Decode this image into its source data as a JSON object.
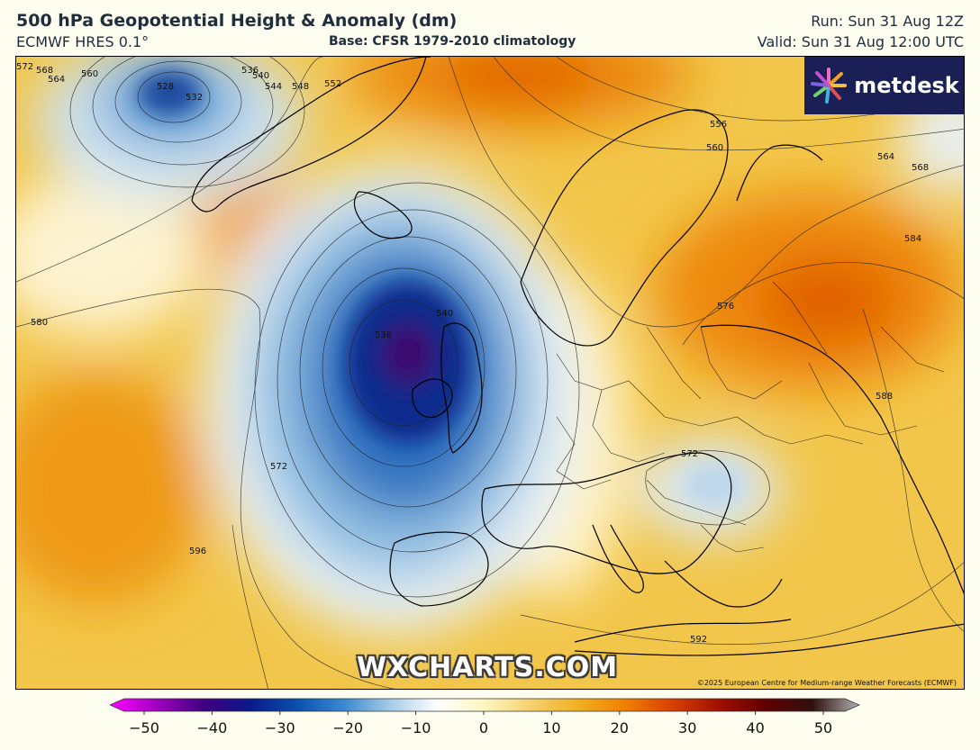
{
  "header": {
    "title": "500 hPa Geopotential Height & Anomaly (dm)",
    "model": "ECMWF HRES 0.1°",
    "base": "Base: CFSR 1979-2010 climatology",
    "run": "Run: Sun 31 Aug 12Z",
    "valid": "Valid: Sun 31 Aug 12:00 UTC"
  },
  "logo": {
    "text": "metdesk",
    "icon": "pinwheel-logo-icon"
  },
  "watermark": "WXCHARTS.COM",
  "copyright": "©2025 European Centre for Medium-range Weather Forecasts (ECMWF)",
  "contour_labels": [
    "572",
    "568",
    "564",
    "560",
    "528",
    "532",
    "536",
    "540",
    "544",
    "548",
    "552",
    "556",
    "560",
    "564",
    "568",
    "584",
    "576",
    "580",
    "536",
    "540",
    "572",
    "572",
    "596",
    "588",
    "592"
  ],
  "colorbar": {
    "ticks": [
      "−50",
      "−40",
      "−30",
      "−20",
      "−10",
      "0",
      "10",
      "20",
      "30",
      "40",
      "50"
    ],
    "range": [
      -50,
      50
    ],
    "colors": [
      "#ff00ff",
      "#a000c0",
      "#400080",
      "#0a1a8a",
      "#0a50b0",
      "#3a8ad0",
      "#a8cce8",
      "#ffffff",
      "#fff5c0",
      "#f5d070",
      "#f0b020",
      "#f08000",
      "#d84000",
      "#a01000",
      "#600000",
      "#301010",
      "#b0b0b0"
    ]
  }
}
